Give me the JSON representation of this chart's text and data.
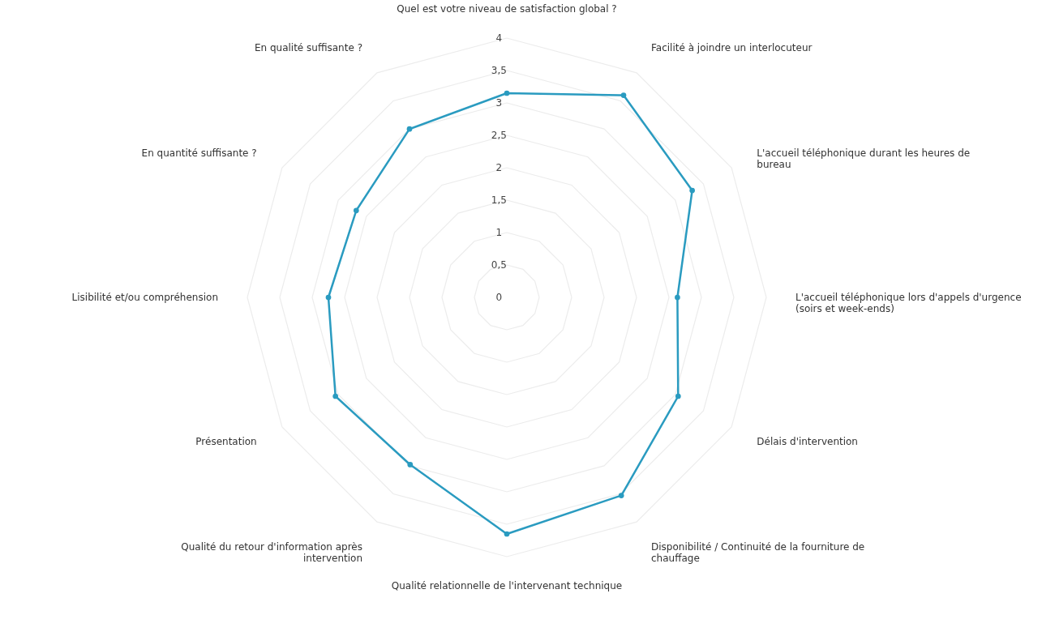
{
  "chart_data": {
    "type": "radar",
    "categories": [
      "Quel est votre niveau de satisfaction global ?",
      "Facilité à joindre un interlocuteur",
      "L'accueil téléphonique durant les heures de\nbureau",
      "L'accueil téléphonique lors d'appels d'urgence\n(soirs et week-ends)",
      "Délais d'intervention",
      "Disponibilité / Continuité de la fourniture de\nchauffage",
      "Qualité relationnelle de l'intervenant technique",
      "Qualité du retour d'information après\nintervention",
      "Présentation",
      "Lisibilité et/ou compréhension",
      "En quantité suffisante ?",
      "En qualité suffisante ?"
    ],
    "series": [
      {
        "color": "#2a9bc0",
        "values": [
          3.15,
          3.6,
          3.3,
          2.63,
          3.05,
          3.53,
          3.65,
          2.98,
          3.05,
          2.75,
          2.68,
          3.0
        ]
      }
    ],
    "ylim": [
      0,
      4
    ],
    "yticks": [
      0,
      {
        "value": 0.5,
        "label": "0,5"
      },
      1,
      {
        "value": 1.5,
        "label": "1,5"
      },
      2,
      {
        "value": 2.5,
        "label": "2,5"
      },
      3,
      {
        "value": 3.5,
        "label": "3,5"
      },
      4
    ],
    "grid": true,
    "marker": "circle"
  }
}
